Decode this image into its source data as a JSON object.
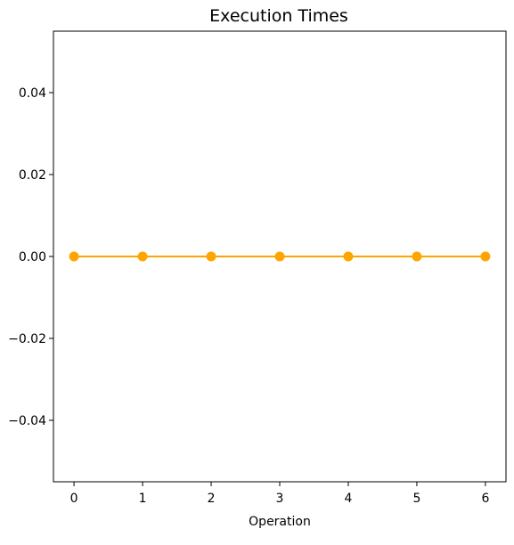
{
  "chart_data": {
    "type": "line",
    "title": "Execution Times",
    "xlabel": "Operation",
    "ylabel": "",
    "x": [
      0,
      1,
      2,
      3,
      4,
      5,
      6
    ],
    "series": [
      {
        "values": [
          0,
          0,
          0,
          0,
          0,
          0,
          0
        ],
        "color": "#ffa500",
        "marker": "circle"
      }
    ],
    "xlim": [
      -0.3,
      6.3
    ],
    "ylim": [
      -0.055,
      0.055
    ],
    "x_ticks": [
      0,
      1,
      2,
      3,
      4,
      5,
      6
    ],
    "x_tick_labels": [
      "0",
      "1",
      "2",
      "3",
      "4",
      "5",
      "6"
    ],
    "y_ticks": [
      0.04,
      0.02,
      0.0,
      -0.02,
      -0.04
    ],
    "y_tick_labels": [
      "0.04",
      "0.02",
      "0.00",
      "−0.02",
      "−0.04"
    ],
    "grid": false,
    "legend": "none"
  }
}
